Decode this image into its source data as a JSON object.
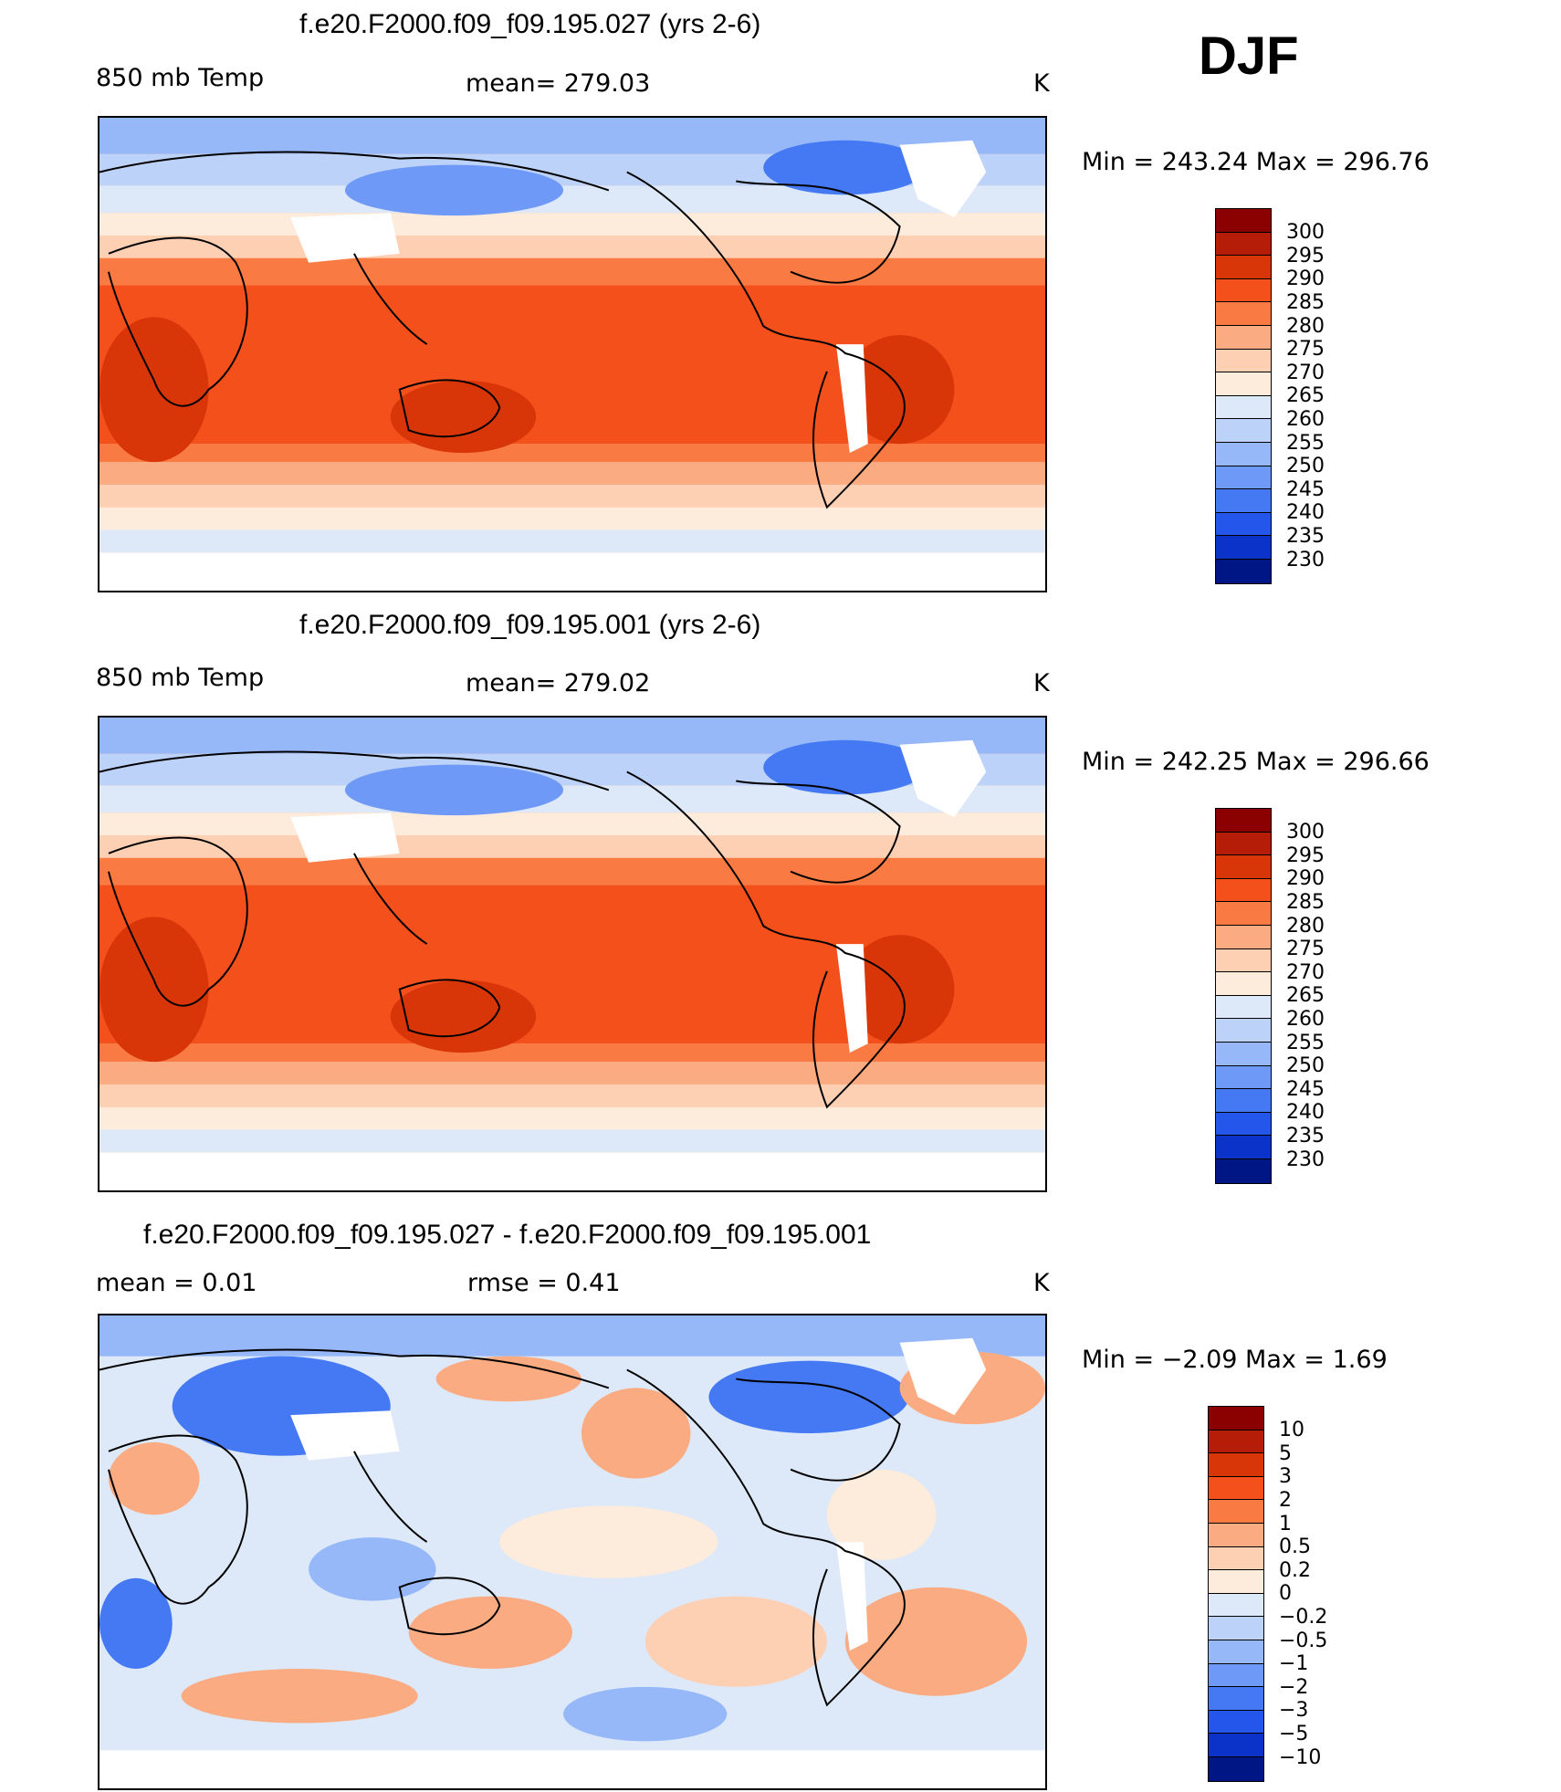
{
  "season": "DJF",
  "colors": {
    "abs_scale": [
      "#8b0000",
      "#b51d08",
      "#d83509",
      "#f4501c",
      "#f97b43",
      "#fbab82",
      "#fdd0b4",
      "#fdebdc",
      "#dde9f8",
      "#bdd2f8",
      "#96b8f9",
      "#6f99f7",
      "#4479f3",
      "#2456eb",
      "#0b33c9",
      "#001685"
    ],
    "diff_scale": [
      "#8b0000",
      "#b51d08",
      "#d83509",
      "#f4501c",
      "#f97b43",
      "#fbab82",
      "#fdd0b4",
      "#fdebdc",
      "#dde9f8",
      "#bdd2f8",
      "#96b8f9",
      "#6f99f7",
      "#4479f3",
      "#2456eb",
      "#0b33c9",
      "#001685"
    ]
  },
  "panels": [
    {
      "title": "f.e20.F2000.f09_f09.195.027 (yrs 2-6)",
      "left_label": "850 mb Temp",
      "center_label": "mean=  279.03",
      "units": "K",
      "minmax": "Min  =  243.24  Max  =  296.76",
      "colorbar_labels": [
        "300",
        "295",
        "290",
        "285",
        "280",
        "275",
        "270",
        "265",
        "260",
        "255",
        "250",
        "245",
        "240",
        "235",
        "230"
      ],
      "palette": "abs_scale"
    },
    {
      "title": "f.e20.F2000.f09_f09.195.001 (yrs 2-6)",
      "left_label": "850 mb Temp",
      "center_label": "mean=  279.02",
      "units": "K",
      "minmax": "Min  =  242.25  Max  =  296.66",
      "colorbar_labels": [
        "300",
        "295",
        "290",
        "285",
        "280",
        "275",
        "270",
        "265",
        "260",
        "255",
        "250",
        "245",
        "240",
        "235",
        "230"
      ],
      "palette": "abs_scale"
    },
    {
      "title": "f.e20.F2000.f09_f09.195.027 - f.e20.F2000.f09_f09.195.001",
      "left_label": "mean =     0.01",
      "center_label": "rmse =     0.41",
      "units": "K",
      "minmax": "Min  =    −2.09  Max  =      1.69",
      "colorbar_labels": [
        "10",
        "5",
        "3",
        "2",
        "1",
        "0.5",
        "0.2",
        "0",
        "−0.2",
        "−0.5",
        "−1",
        "−2",
        "−3",
        "−5",
        "−10"
      ],
      "palette": "diff_scale"
    }
  ]
}
